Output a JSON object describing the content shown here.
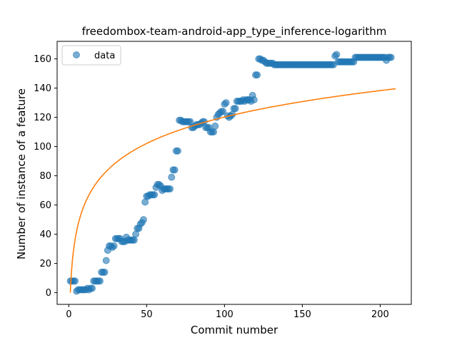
{
  "chart_data": {
    "type": "scatter",
    "title": "freedombox-team-android-app_type_inference-logarithm",
    "xlabel": "Commit number",
    "ylabel": "Number of instance of a feature",
    "xlim": [
      -7.5,
      220
    ],
    "ylim": [
      -8,
      172
    ],
    "xticks": [
      0,
      50,
      100,
      150,
      200
    ],
    "yticks": [
      0,
      20,
      40,
      60,
      80,
      100,
      120,
      140,
      160
    ],
    "grid": false,
    "legend": {
      "position": "upper left",
      "entries": [
        {
          "label": "data",
          "marker": "circle"
        }
      ]
    },
    "colors": {
      "data": "#1f77b4",
      "fit": "#ff7f0e"
    },
    "series": [
      {
        "name": "data",
        "kind": "scatter",
        "points": [
          [
            1,
            8
          ],
          [
            2,
            8
          ],
          [
            3,
            8
          ],
          [
            4,
            8
          ],
          [
            5,
            1
          ],
          [
            6,
            2
          ],
          [
            7,
            2
          ],
          [
            8,
            2
          ],
          [
            9,
            2
          ],
          [
            10,
            2
          ],
          [
            11,
            2
          ],
          [
            12,
            3
          ],
          [
            13,
            2
          ],
          [
            14,
            3
          ],
          [
            15,
            3
          ],
          [
            16,
            8
          ],
          [
            17,
            8
          ],
          [
            18,
            8
          ],
          [
            19,
            8
          ],
          [
            20,
            8
          ],
          [
            21,
            14
          ],
          [
            22,
            14
          ],
          [
            23,
            14
          ],
          [
            24,
            22
          ],
          [
            25,
            29
          ],
          [
            26,
            32
          ],
          [
            27,
            32
          ],
          [
            28,
            31
          ],
          [
            29,
            32
          ],
          [
            30,
            37
          ],
          [
            31,
            37
          ],
          [
            32,
            37
          ],
          [
            33,
            37
          ],
          [
            34,
            35
          ],
          [
            35,
            35
          ],
          [
            36,
            35
          ],
          [
            37,
            38
          ],
          [
            38,
            36
          ],
          [
            39,
            36
          ],
          [
            40,
            36
          ],
          [
            41,
            36
          ],
          [
            42,
            36
          ],
          [
            43,
            40
          ],
          [
            44,
            44
          ],
          [
            45,
            44
          ],
          [
            46,
            47
          ],
          [
            47,
            48
          ],
          [
            48,
            50
          ],
          [
            49,
            62
          ],
          [
            50,
            66
          ],
          [
            51,
            66
          ],
          [
            52,
            67
          ],
          [
            53,
            67
          ],
          [
            54,
            67
          ],
          [
            55,
            67
          ],
          [
            56,
            72
          ],
          [
            57,
            74
          ],
          [
            58,
            74
          ],
          [
            59,
            73
          ],
          [
            60,
            70
          ],
          [
            61,
            71
          ],
          [
            62,
            71
          ],
          [
            63,
            71
          ],
          [
            64,
            71
          ],
          [
            65,
            71
          ],
          [
            66,
            79
          ],
          [
            67,
            84
          ],
          [
            68,
            84
          ],
          [
            69,
            97
          ],
          [
            70,
            97
          ],
          [
            71,
            118
          ],
          [
            72,
            118
          ],
          [
            73,
            117
          ],
          [
            74,
            117
          ],
          [
            75,
            117
          ],
          [
            76,
            117
          ],
          [
            77,
            117
          ],
          [
            78,
            117
          ],
          [
            79,
            113
          ],
          [
            80,
            113
          ],
          [
            81,
            114
          ],
          [
            82,
            115
          ],
          [
            83,
            115
          ],
          [
            84,
            115
          ],
          [
            85,
            116
          ],
          [
            86,
            117
          ],
          [
            87,
            117
          ],
          [
            88,
            113
          ],
          [
            89,
            113
          ],
          [
            90,
            113
          ],
          [
            91,
            110
          ],
          [
            92,
            110
          ],
          [
            93,
            110
          ],
          [
            94,
            114
          ],
          [
            95,
            120
          ],
          [
            96,
            122
          ],
          [
            97,
            123
          ],
          [
            98,
            124
          ],
          [
            99,
            124
          ],
          [
            100,
            129
          ],
          [
            101,
            130
          ],
          [
            102,
            121
          ],
          [
            103,
            120
          ],
          [
            104,
            121
          ],
          [
            105,
            122
          ],
          [
            106,
            126
          ],
          [
            107,
            126
          ],
          [
            108,
            131
          ],
          [
            109,
            131
          ],
          [
            110,
            131
          ],
          [
            111,
            131
          ],
          [
            112,
            132
          ],
          [
            113,
            131
          ],
          [
            114,
            132
          ],
          [
            115,
            132
          ],
          [
            116,
            132
          ],
          [
            117,
            131
          ],
          [
            118,
            135
          ],
          [
            119,
            132
          ],
          [
            120,
            149
          ],
          [
            121,
            149
          ],
          [
            122,
            160
          ],
          [
            123,
            160
          ],
          [
            124,
            159
          ],
          [
            125,
            159
          ],
          [
            126,
            158
          ],
          [
            127,
            157
          ],
          [
            128,
            157
          ],
          [
            129,
            157
          ],
          [
            130,
            157
          ],
          [
            131,
            157
          ],
          [
            132,
            156
          ],
          [
            133,
            156
          ],
          [
            134,
            156
          ],
          [
            135,
            156
          ],
          [
            136,
            156
          ],
          [
            137,
            156
          ],
          [
            138,
            156
          ],
          [
            139,
            156
          ],
          [
            140,
            156
          ],
          [
            141,
            156
          ],
          [
            142,
            156
          ],
          [
            143,
            156
          ],
          [
            144,
            156
          ],
          [
            145,
            156
          ],
          [
            146,
            156
          ],
          [
            147,
            156
          ],
          [
            148,
            156
          ],
          [
            149,
            156
          ],
          [
            150,
            156
          ],
          [
            151,
            156
          ],
          [
            152,
            156
          ],
          [
            153,
            156
          ],
          [
            154,
            156
          ],
          [
            155,
            156
          ],
          [
            156,
            156
          ],
          [
            157,
            156
          ],
          [
            158,
            156
          ],
          [
            159,
            156
          ],
          [
            160,
            156
          ],
          [
            161,
            156
          ],
          [
            162,
            156
          ],
          [
            163,
            156
          ],
          [
            164,
            156
          ],
          [
            165,
            156
          ],
          [
            166,
            156
          ],
          [
            167,
            156
          ],
          [
            168,
            156
          ],
          [
            169,
            156
          ],
          [
            170,
            156
          ],
          [
            171,
            162
          ],
          [
            172,
            163
          ],
          [
            173,
            158
          ],
          [
            174,
            158
          ],
          [
            175,
            158
          ],
          [
            176,
            158
          ],
          [
            177,
            158
          ],
          [
            178,
            158
          ],
          [
            179,
            158
          ],
          [
            180,
            158
          ],
          [
            181,
            158
          ],
          [
            182,
            158
          ],
          [
            183,
            158
          ],
          [
            184,
            161
          ],
          [
            185,
            161
          ],
          [
            186,
            161
          ],
          [
            187,
            161
          ],
          [
            188,
            161
          ],
          [
            189,
            161
          ],
          [
            190,
            161
          ],
          [
            191,
            161
          ],
          [
            192,
            161
          ],
          [
            193,
            161
          ],
          [
            194,
            161
          ],
          [
            195,
            161
          ],
          [
            196,
            161
          ],
          [
            197,
            161
          ],
          [
            198,
            161
          ],
          [
            199,
            161
          ],
          [
            200,
            161
          ],
          [
            201,
            161
          ],
          [
            202,
            161
          ],
          [
            203,
            161
          ],
          [
            204,
            159
          ],
          [
            205,
            161
          ],
          [
            206,
            161
          ],
          [
            207,
            161
          ]
        ]
      },
      {
        "name": "",
        "kind": "line",
        "model": "logarithmic",
        "x_range": [
          1,
          210
        ],
        "coefficients": {
          "a": 26.1,
          "b": 0
        },
        "formula": "y = a*ln(x) + b"
      }
    ]
  }
}
